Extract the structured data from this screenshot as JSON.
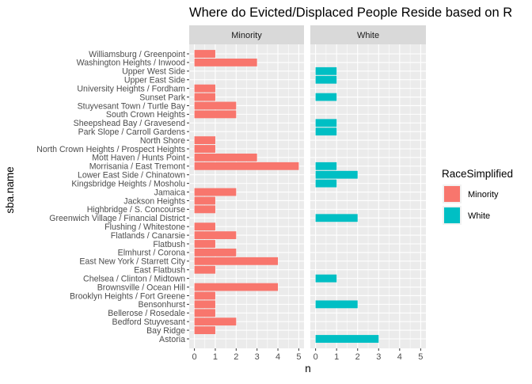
{
  "chart_data": {
    "type": "bar",
    "orientation": "horizontal",
    "title": "Where do Evicted/Displaced People Reside based on R",
    "xlabel": "n",
    "ylabel": "sba.name",
    "xlim": [
      0,
      5
    ],
    "x_ticks": [
      "0",
      "1",
      "2",
      "3",
      "4",
      "5"
    ],
    "grid": true,
    "legend_placement": "right",
    "facets": [
      "Minority",
      "White"
    ],
    "categories": [
      "Williamsburg / Greenpoint",
      "Washington Heights / Inwood",
      "Upper West Side",
      "Upper East Side",
      "University Heights / Fordham",
      "Sunset Park",
      "Stuyvesant Town / Turtle Bay",
      "South Crown Heights",
      "Sheepshead Bay / Gravesend",
      "Park Slope / Carroll Gardens",
      "North Shore",
      "North Crown Heights / Prospect Heights",
      "Mott Haven / Hunts Point",
      "Morrisania / East Tremont",
      "Lower East Side / Chinatown",
      "Kingsbridge Heights / Mosholu",
      "Jamaica",
      "Jackson Heights",
      "Highbridge / S. Concourse",
      "Greenwich Village / Financial District",
      "Flushing / Whitestone",
      "Flatlands / Canarsie",
      "Flatbush",
      "Elmhurst / Corona",
      "East New York / Starrett City",
      "East Flatbush",
      "Chelsea / Clinton / Midtown",
      "Brownsville / Ocean Hill",
      "Brooklyn Heights / Fort Greene",
      "Bensonhurst",
      "Bellerose / Rosedale",
      "Bedford Stuyvesant",
      "Bay Ridge",
      "Astoria"
    ],
    "series": [
      {
        "name": "Minority",
        "color": "#F8766D",
        "values": [
          1,
          3,
          0,
          0,
          1,
          1,
          2,
          2,
          0,
          0,
          1,
          1,
          3,
          5,
          0,
          0,
          2,
          1,
          1,
          0,
          1,
          2,
          1,
          2,
          4,
          1,
          0,
          4,
          1,
          1,
          1,
          2,
          1,
          0
        ]
      },
      {
        "name": "White",
        "color": "#00BFC4",
        "values": [
          0,
          0,
          1,
          1,
          0,
          1,
          0,
          0,
          1,
          1,
          0,
          0,
          0,
          1,
          2,
          1,
          0,
          0,
          0,
          2,
          0,
          0,
          0,
          0,
          0,
          0,
          1,
          0,
          0,
          2,
          0,
          0,
          0,
          3
        ]
      }
    ],
    "legend": {
      "title": "RaceSimplified",
      "items": [
        "Minority",
        "White"
      ]
    }
  }
}
